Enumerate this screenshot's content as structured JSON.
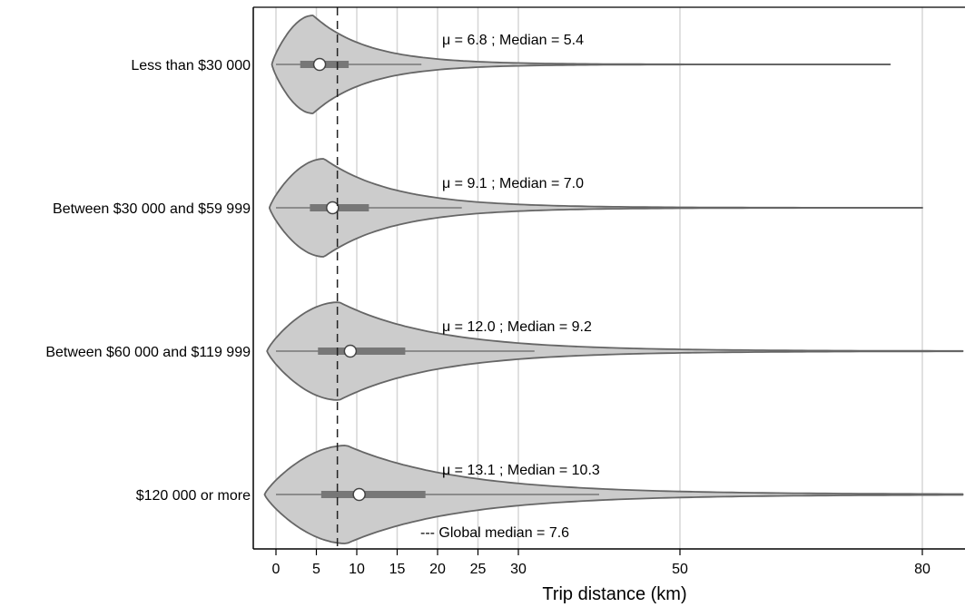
{
  "chart_data": {
    "type": "violin",
    "orientation": "horizontal",
    "xlabel": "Trip distance (km)",
    "x_ticks": [
      0,
      5,
      10,
      15,
      20,
      25,
      30,
      50,
      80
    ],
    "xlim": [
      -2,
      85
    ],
    "grid": "vertical",
    "colors": {
      "fill": "#cccccc",
      "outline": "#666666",
      "box": "#777777",
      "median_marker": "#ffffff"
    },
    "global_median": {
      "value": 7.6,
      "label": "--- Global median = 7.6"
    },
    "groups": [
      {
        "category": "Less than $30 000",
        "mean": 6.8,
        "median": 5.4,
        "q1": 3.0,
        "q3": 9.0,
        "whisker_low": 0,
        "whisker_high": 18,
        "max_tail": 76,
        "stat_label": "μ = 6.8 ; Median = 5.4"
      },
      {
        "category": "Between $30 000 and $59 999",
        "mean": 9.1,
        "median": 7.0,
        "q1": 4.2,
        "q3": 11.5,
        "whisker_low": 0,
        "whisker_high": 23,
        "max_tail": 80,
        "stat_label": "μ = 9.1 ; Median = 7.0"
      },
      {
        "category": "Between $60 000 and $119 999",
        "mean": 12.0,
        "median": 9.2,
        "q1": 5.2,
        "q3": 16.0,
        "whisker_low": 0,
        "whisker_high": 32,
        "max_tail": 85,
        "stat_label": "μ = 12.0 ; Median = 9.2"
      },
      {
        "category": "$120 000 or more",
        "mean": 13.1,
        "median": 10.3,
        "q1": 5.6,
        "q3": 18.5,
        "whisker_low": 0,
        "whisker_high": 40,
        "max_tail": 85,
        "stat_label": "μ = 13.1 ; Median = 10.3"
      }
    ]
  }
}
